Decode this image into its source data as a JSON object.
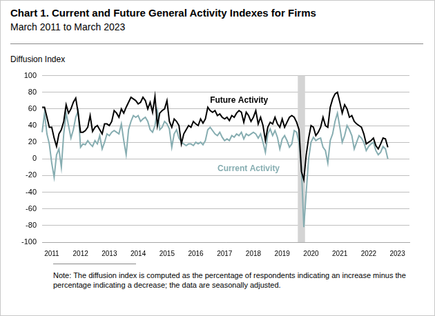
{
  "chart_data": {
    "type": "line",
    "title": "Chart 1. Current and Future General Activity Indexes for Firms",
    "subtitle": "March 2011 to March 2023",
    "y_label": "Diffusion Index",
    "note": "Note:  The diffusion index is computed as the percentage of respondents indicating an increase minus the percentage indicating a decrease; the data are seasonally adjusted.",
    "categories": [
      null,
      null,
      null,
      null,
      "2011",
      null,
      null,
      null,
      null,
      null,
      null,
      null,
      null,
      null,
      null,
      null,
      "2012",
      null,
      null,
      null,
      null,
      null,
      null,
      null,
      null,
      null,
      null,
      null,
      "2013",
      null,
      null,
      null,
      null,
      null,
      null,
      null,
      null,
      null,
      null,
      null,
      "2014",
      null,
      null,
      null,
      null,
      null,
      null,
      null,
      null,
      null,
      null,
      null,
      "2015",
      null,
      null,
      null,
      null,
      null,
      null,
      null,
      null,
      null,
      null,
      null,
      "2016",
      null,
      null,
      null,
      null,
      null,
      null,
      null,
      null,
      null,
      null,
      null,
      "2017",
      null,
      null,
      null,
      null,
      null,
      null,
      null,
      null,
      null,
      null,
      null,
      "2018",
      null,
      null,
      null,
      null,
      null,
      null,
      null,
      null,
      null,
      null,
      null,
      "2019",
      null,
      null,
      null,
      null,
      null,
      null,
      null,
      null,
      null,
      null,
      null,
      "2020",
      null,
      null,
      null,
      null,
      null,
      null,
      null,
      null,
      null,
      null,
      null,
      "2021",
      null,
      null,
      null,
      null,
      null,
      null,
      null,
      null,
      null,
      null,
      null,
      "2022",
      null,
      null,
      null,
      null,
      null,
      null,
      null,
      null,
      null,
      null,
      null,
      "2023",
      null,
      null,
      null,
      null,
      null
    ],
    "series": [
      {
        "name": "Future Activity",
        "color": "#000000",
        "values": [
          62,
          62,
          50,
          38,
          38,
          25,
          15,
          30,
          35,
          45,
          65,
          55,
          60,
          68,
          73,
          55,
          32,
          32,
          34,
          38,
          52,
          33,
          38,
          40,
          35,
          30,
          42,
          42,
          40,
          45,
          58,
          55,
          50,
          60,
          55,
          62,
          68,
          74,
          72,
          70,
          66,
          68,
          74,
          70,
          60,
          68,
          56,
          75,
          40,
          55,
          58,
          60,
          70,
          45,
          38,
          48,
          45,
          40,
          18,
          30,
          35,
          40,
          38,
          45,
          42,
          40,
          48,
          43,
          48,
          62,
          58,
          56,
          58,
          52,
          54,
          50,
          48,
          50,
          46,
          52,
          50,
          55,
          58,
          56,
          44,
          56,
          52,
          45,
          50,
          58,
          42,
          50,
          40,
          22,
          38,
          44,
          42,
          50,
          42,
          38,
          48,
          38,
          44,
          50,
          52,
          50,
          44,
          35,
          -15,
          -25,
          5,
          25,
          40,
          38,
          28,
          32,
          38,
          50,
          40,
          38,
          62,
          72,
          78,
          80,
          68,
          55,
          65,
          60,
          50,
          52,
          45,
          42,
          40,
          38,
          30,
          18,
          20,
          22,
          25,
          16,
          12,
          18,
          25,
          24,
          14,
          null,
          null,
          null,
          null,
          null,
          null,
          null,
          null,
          null
        ]
      },
      {
        "name": "Current Activity",
        "color": "#86adb1",
        "values": [
          32,
          55,
          30,
          18,
          -5,
          -22,
          5,
          12,
          -10,
          30,
          55,
          40,
          25,
          35,
          50,
          58,
          14,
          18,
          17,
          22,
          18,
          15,
          22,
          18,
          28,
          12,
          20,
          30,
          28,
          32,
          34,
          32,
          30,
          42,
          22,
          5,
          35,
          45,
          52,
          50,
          52,
          45,
          48,
          50,
          45,
          35,
          32,
          40,
          58,
          35,
          38,
          45,
          42,
          36,
          14,
          30,
          35,
          25,
          20,
          18,
          16,
          18,
          18,
          16,
          20,
          18,
          20,
          17,
          22,
          35,
          38,
          34,
          30,
          28,
          32,
          26,
          22,
          24,
          22,
          28,
          26,
          30,
          28,
          32,
          24,
          30,
          28,
          30,
          32,
          30,
          25,
          30,
          20,
          8,
          30,
          36,
          28,
          34,
          26,
          12,
          24,
          28,
          22,
          14,
          18,
          34,
          32,
          20,
          -10,
          -82,
          -40,
          0,
          20,
          26,
          22,
          24,
          25,
          14,
          10,
          -5,
          22,
          30,
          45,
          55,
          38,
          20,
          28,
          40,
          35,
          28,
          12,
          20,
          28,
          25,
          20,
          10,
          15,
          18,
          20,
          10,
          5,
          8,
          15,
          12,
          0,
          null,
          null,
          null,
          null,
          null,
          null,
          null,
          null,
          null
        ]
      }
    ],
    "shaded_periods": [
      {
        "from": 107,
        "to": 109
      }
    ],
    "ylim": [
      -100,
      100
    ],
    "yticks": [
      -100,
      -80,
      -60,
      -40,
      -20,
      0,
      20,
      40,
      60,
      80,
      100
    ],
    "grid": true
  }
}
